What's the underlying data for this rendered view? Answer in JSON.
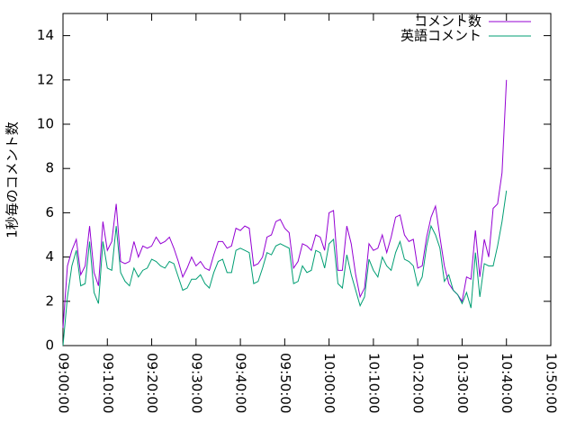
{
  "chart_data": {
    "type": "line",
    "y_label": "1秒毎のコメント数",
    "x": [
      "09:00:00",
      "09:01:00",
      "09:02:00",
      "09:03:00",
      "09:04:00",
      "09:05:00",
      "09:06:00",
      "09:07:00",
      "09:08:00",
      "09:09:00",
      "09:10:00",
      "09:11:00",
      "09:12:00",
      "09:13:00",
      "09:14:00",
      "09:15:00",
      "09:16:00",
      "09:17:00",
      "09:18:00",
      "09:19:00",
      "09:20:00",
      "09:21:00",
      "09:22:00",
      "09:23:00",
      "09:24:00",
      "09:25:00",
      "09:26:00",
      "09:27:00",
      "09:28:00",
      "09:29:00",
      "09:30:00",
      "09:31:00",
      "09:32:00",
      "09:33:00",
      "09:34:00",
      "09:35:00",
      "09:36:00",
      "09:37:00",
      "09:38:00",
      "09:39:00",
      "09:40:00",
      "09:41:00",
      "09:42:00",
      "09:43:00",
      "09:44:00",
      "09:45:00",
      "09:46:00",
      "09:47:00",
      "09:48:00",
      "09:49:00",
      "09:50:00",
      "09:51:00",
      "09:52:00",
      "09:53:00",
      "09:54:00",
      "09:55:00",
      "09:56:00",
      "09:57:00",
      "09:58:00",
      "09:59:00",
      "10:00:00",
      "10:01:00",
      "10:02:00",
      "10:03:00",
      "10:04:00",
      "10:05:00",
      "10:06:00",
      "10:07:00",
      "10:08:00",
      "10:09:00",
      "10:10:00",
      "10:11:00",
      "10:12:00",
      "10:13:00",
      "10:14:00",
      "10:15:00",
      "10:16:00",
      "10:17:00",
      "10:18:00",
      "10:19:00",
      "10:20:00",
      "10:21:00",
      "10:22:00",
      "10:23:00",
      "10:24:00",
      "10:25:00",
      "10:26:00",
      "10:27:00",
      "10:28:00",
      "10:29:00",
      "10:30:00",
      "10:31:00",
      "10:32:00",
      "10:33:00",
      "10:34:00",
      "10:35:00",
      "10:36:00",
      "10:37:00",
      "10:38:00",
      "10:39:00",
      "10:40:00"
    ],
    "series": [
      {
        "name": "コメント数",
        "color": "#9400d3",
        "values": [
          0.8,
          3.6,
          4.3,
          4.8,
          3.2,
          3.6,
          5.4,
          3.3,
          2.7,
          5.6,
          4.3,
          4.7,
          6.4,
          3.8,
          3.7,
          3.8,
          4.7,
          4.0,
          4.5,
          4.4,
          4.5,
          4.9,
          4.6,
          4.7,
          4.9,
          4.4,
          3.8,
          3.1,
          3.5,
          4.0,
          3.6,
          3.8,
          3.5,
          3.4,
          4.1,
          4.7,
          4.7,
          4.4,
          4.5,
          5.3,
          5.2,
          5.4,
          5.3,
          3.6,
          3.7,
          4.0,
          4.9,
          5.0,
          5.6,
          5.7,
          5.3,
          5.1,
          3.5,
          3.8,
          4.6,
          4.5,
          4.3,
          5.0,
          4.9,
          4.3,
          6.0,
          6.1,
          3.4,
          3.4,
          5.4,
          4.6,
          3.2,
          2.2,
          2.6,
          4.6,
          4.3,
          4.4,
          5.0,
          4.2,
          4.9,
          5.8,
          5.9,
          5.0,
          4.7,
          4.8,
          3.5,
          3.6,
          4.9,
          5.8,
          6.3,
          4.9,
          3.6,
          2.8,
          2.5,
          2.3,
          2.0,
          3.1,
          3.0,
          5.2,
          3.1,
          4.8,
          4.0,
          6.2,
          6.4,
          7.8,
          12.0
        ]
      },
      {
        "name": "英語コメント",
        "color": "#009e73",
        "values": [
          0.0,
          2.2,
          3.6,
          4.3,
          2.7,
          2.8,
          4.7,
          2.4,
          1.9,
          4.7,
          3.5,
          3.4,
          5.4,
          3.3,
          2.9,
          2.7,
          3.5,
          3.1,
          3.4,
          3.5,
          3.9,
          3.8,
          3.6,
          3.5,
          3.8,
          3.7,
          3.1,
          2.5,
          2.6,
          3.0,
          3.0,
          3.2,
          2.8,
          2.6,
          3.3,
          3.8,
          3.9,
          3.3,
          3.3,
          4.3,
          4.4,
          4.3,
          4.2,
          2.8,
          2.9,
          3.5,
          4.2,
          4.1,
          4.5,
          4.6,
          4.5,
          4.4,
          2.8,
          2.9,
          3.6,
          3.3,
          3.4,
          4.3,
          4.2,
          3.5,
          4.6,
          4.8,
          2.8,
          2.6,
          4.1,
          3.2,
          2.5,
          1.8,
          2.2,
          3.9,
          3.4,
          3.1,
          4.0,
          3.6,
          3.4,
          4.2,
          4.7,
          3.9,
          3.8,
          3.6,
          2.7,
          3.1,
          4.5,
          5.4,
          5.0,
          4.4,
          2.9,
          3.2,
          2.5,
          2.3,
          1.9,
          2.4,
          1.7,
          4.2,
          2.2,
          3.7,
          3.6,
          3.6,
          4.5,
          5.6,
          7.0
        ]
      }
    ],
    "xlim": [
      "09:00:00",
      "10:50:00"
    ],
    "xticks": [
      "09:00:00",
      "09:10:00",
      "09:20:00",
      "09:30:00",
      "09:40:00",
      "09:50:00",
      "10:00:00",
      "10:10:00",
      "10:20:00",
      "10:30:00",
      "10:40:00",
      "10:50:00"
    ],
    "ylim": [
      0,
      15
    ],
    "yticks": [
      0,
      2,
      4,
      6,
      8,
      10,
      12,
      14
    ],
    "legend": "upper right"
  }
}
